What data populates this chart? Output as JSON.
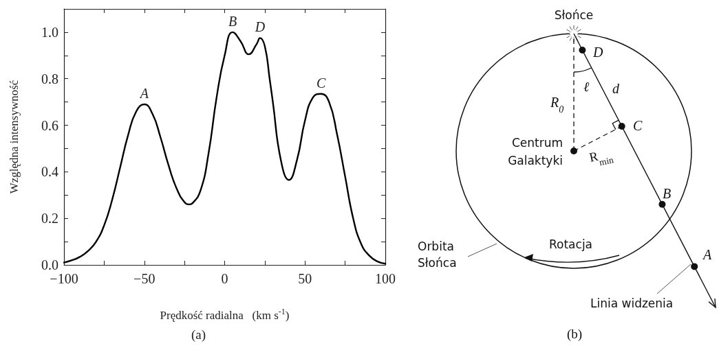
{
  "chart_data": [
    {
      "type": "line",
      "xlabel": "Prędkość radialna   (km s$^{-1}$)",
      "ylabel": "Względna intensywność",
      "x": [
        -100,
        -95,
        -90,
        -85,
        -80,
        -75,
        -70,
        -65,
        -60,
        -55,
        -50,
        -45,
        -40,
        -35,
        -30,
        -25,
        -22,
        -20,
        -15,
        -10,
        -5,
        0,
        5,
        10,
        15,
        20,
        22,
        25,
        28,
        30,
        35,
        40,
        45,
        50,
        55,
        60,
        65,
        70,
        75,
        80,
        85,
        90,
        95,
        100
      ],
      "series": [
        {
          "color": "#000000",
          "values": [
            0.01,
            0.02,
            0.035,
            0.06,
            0.1,
            0.17,
            0.28,
            0.42,
            0.56,
            0.66,
            0.69,
            0.65,
            0.55,
            0.43,
            0.33,
            0.27,
            0.26,
            0.265,
            0.32,
            0.48,
            0.72,
            0.9,
            1.0,
            0.96,
            0.905,
            0.95,
            0.975,
            0.94,
            0.8,
            0.7,
            0.45,
            0.365,
            0.45,
            0.62,
            0.72,
            0.735,
            0.7,
            0.56,
            0.38,
            0.2,
            0.09,
            0.04,
            0.015,
            0.005
          ]
        }
      ],
      "xlim": [
        -100,
        100
      ],
      "ylim": [
        0,
        1.1
      ],
      "xticks": [
        {
          "value": -100,
          "label": "−100"
        },
        {
          "value": -75,
          "label": null
        },
        {
          "value": -50,
          "label": "−50"
        },
        {
          "value": -25,
          "label": null
        },
        0,
        {
          "value": 25,
          "label": null
        },
        50,
        {
          "value": 75,
          "label": null
        },
        100
      ],
      "yticks": [
        {
          "value": 0,
          "label": "0.0"
        },
        {
          "value": 0.1,
          "label": null
        },
        {
          "value": 0.2,
          "label": "0.2"
        },
        {
          "value": 0.3,
          "label": null
        },
        {
          "value": 0.4,
          "label": "0.4"
        },
        {
          "value": 0.5,
          "label": null
        },
        {
          "value": 0.6,
          "label": "0.6"
        },
        {
          "value": 0.7,
          "label": null
        },
        {
          "value": 0.8,
          "label": "0.8"
        },
        {
          "value": 0.9,
          "label": null
        },
        {
          "value": 1.0,
          "label": "1.0"
        }
      ],
      "grid": false,
      "annotations": [
        {
          "text": "A",
          "x": -50,
          "y": 0.69
        },
        {
          "text": "B",
          "x": 5,
          "y": 1.0
        },
        {
          "text": "D",
          "x": 22,
          "y": 0.975
        },
        {
          "text": "C",
          "x": 60,
          "y": 0.735
        },
        "(a)"
      ]
    },
    {
      "type": "other",
      "annotations": [
        "Słońce",
        "D",
        "ℓ",
        "d",
        "R$_{0}$",
        "C",
        "Centrum",
        "Galaktyki",
        "R$_{min}$",
        "B",
        "A",
        "Orbita",
        "Słońca",
        "Rotacja",
        "Linia widzenia",
        "(b)"
      ]
    }
  ]
}
